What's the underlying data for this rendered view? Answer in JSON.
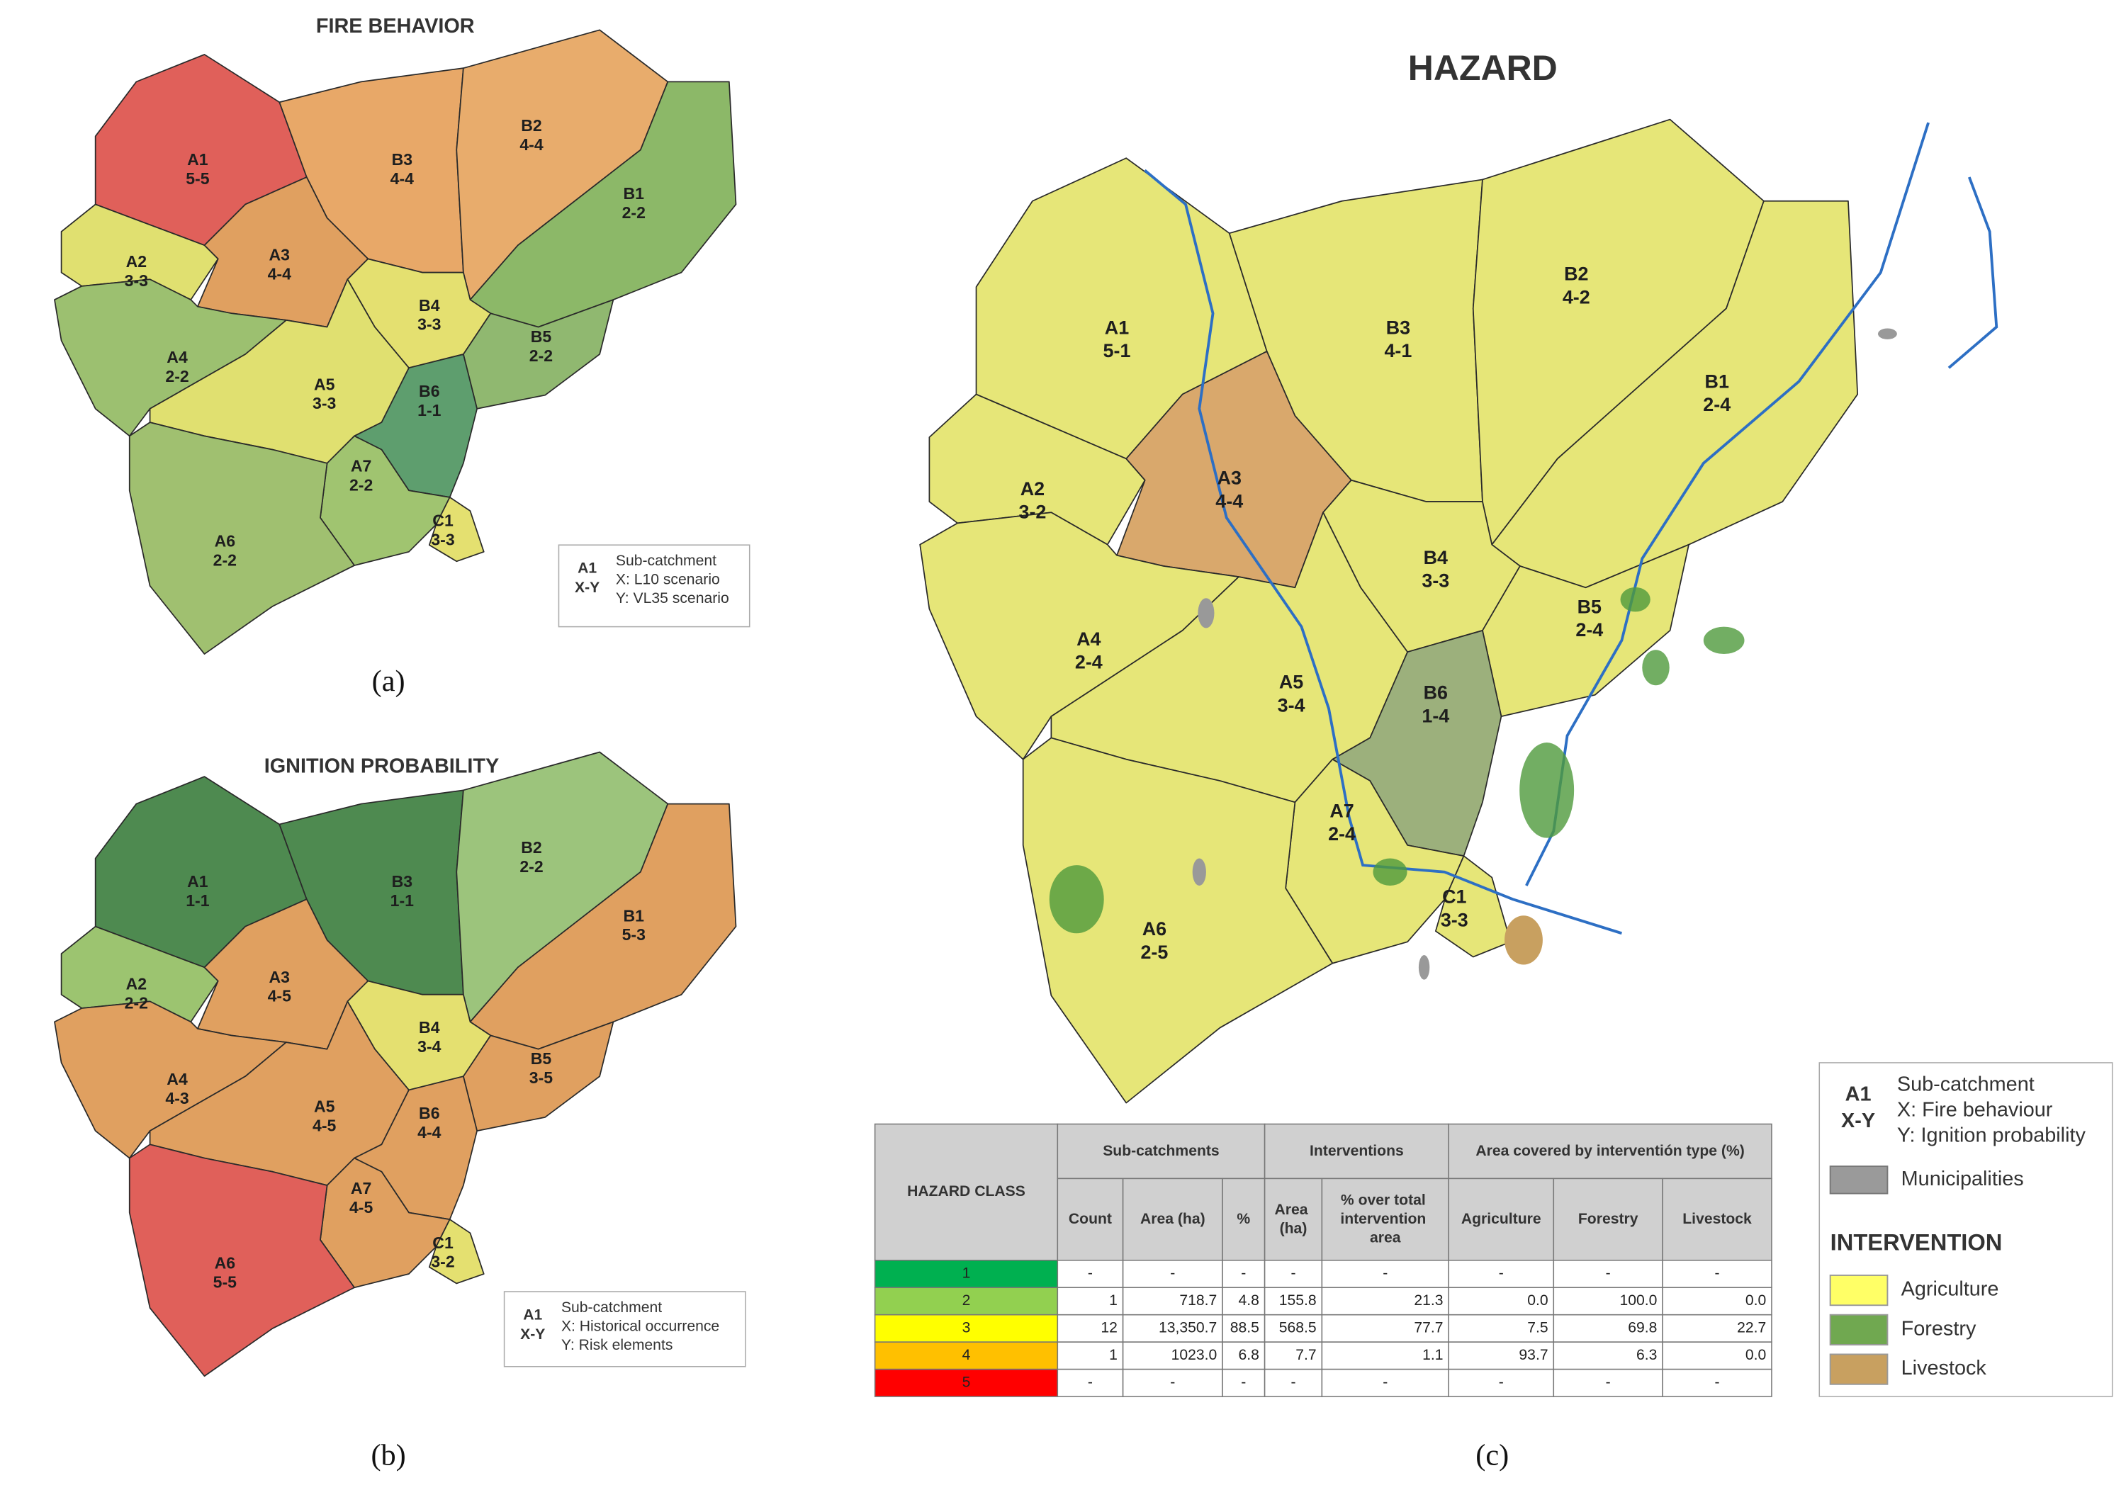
{
  "panels": [
    {
      "title": "FIRE BEHAVIOR",
      "regions": [
        {
          "id": "A1",
          "code": "5-5"
        },
        {
          "id": "B3",
          "code": "4-4"
        },
        {
          "id": "B2",
          "code": "4-4"
        },
        {
          "id": "B1",
          "code": "2-2"
        },
        {
          "id": "A2",
          "code": "3-3"
        },
        {
          "id": "A3",
          "code": "4-4"
        },
        {
          "id": "B4",
          "code": "3-3"
        },
        {
          "id": "B5",
          "code": "2-2"
        },
        {
          "id": "A4",
          "code": "2-2"
        },
        {
          "id": "A5",
          "code": "3-3"
        },
        {
          "id": "B6",
          "code": "1-1"
        },
        {
          "id": "A7",
          "code": "2-2"
        },
        {
          "id": "C1",
          "code": "3-3"
        },
        {
          "id": "A6",
          "code": "2-2"
        }
      ],
      "legend": {
        "example_id": "A1",
        "example_code": "X-Y",
        "lines": [
          "Sub-catchment",
          "X: L10 scenario",
          "Y: VL35 scenario"
        ]
      },
      "caption": "(a)"
    },
    {
      "title": "IGNITION PROBABILITY",
      "regions": [
        {
          "id": "A1",
          "code": "1-1"
        },
        {
          "id": "B3",
          "code": "1-1"
        },
        {
          "id": "B2",
          "code": "2-2"
        },
        {
          "id": "B1",
          "code": "5-3"
        },
        {
          "id": "A2",
          "code": "2-2"
        },
        {
          "id": "A3",
          "code": "4-5"
        },
        {
          "id": "B4",
          "code": "3-4"
        },
        {
          "id": "B5",
          "code": "3-5"
        },
        {
          "id": "A4",
          "code": "4-3"
        },
        {
          "id": "A5",
          "code": "4-5"
        },
        {
          "id": "B6",
          "code": "4-4"
        },
        {
          "id": "A7",
          "code": "4-5"
        },
        {
          "id": "C1",
          "code": "3-2"
        },
        {
          "id": "A6",
          "code": "5-5"
        }
      ],
      "legend": {
        "example_id": "A1",
        "example_code": "X-Y",
        "lines": [
          "Sub-catchment",
          "X: Historical occurrence",
          "Y: Risk elements"
        ]
      },
      "caption": "(b)"
    },
    {
      "title": "HAZARD",
      "regions": [
        {
          "id": "A1",
          "code": "5-1"
        },
        {
          "id": "B3",
          "code": "4-1"
        },
        {
          "id": "B2",
          "code": "4-2"
        },
        {
          "id": "B1",
          "code": "2-4"
        },
        {
          "id": "A2",
          "code": "3-2"
        },
        {
          "id": "A3",
          "code": "4-4"
        },
        {
          "id": "B4",
          "code": "3-3"
        },
        {
          "id": "B5",
          "code": "2-4"
        },
        {
          "id": "A4",
          "code": "2-4"
        },
        {
          "id": "A5",
          "code": "3-4"
        },
        {
          "id": "B6",
          "code": "1-4"
        },
        {
          "id": "A7",
          "code": "2-4"
        },
        {
          "id": "C1",
          "code": "3-3"
        },
        {
          "id": "A6",
          "code": "2-5"
        }
      ],
      "legend": {
        "example_id": "A1",
        "example_code": "X-Y",
        "lines": [
          "Sub-catchment",
          "X: Fire behaviour",
          "Y: Ignition probability"
        ],
        "items": [
          "Municipalities"
        ],
        "intervention_title": "INTERVENTION",
        "intervention_items": [
          "Agriculture",
          "Forestry",
          "Livestock"
        ]
      },
      "caption": "(c)"
    }
  ],
  "table": {
    "corner": "HAZARD CLASS",
    "groups": [
      "Sub-catchments",
      "Interventions",
      "Area covered by interventión type (%)"
    ],
    "columns": [
      "Count",
      "Area (ha)",
      "%",
      "Area (ha)",
      "% over total intervention area",
      "Agriculture",
      "Forestry",
      "Livestock"
    ],
    "rows": [
      [
        "1",
        "-",
        "-",
        "-",
        "-",
        "-",
        "-",
        "-",
        "-"
      ],
      [
        "2",
        "1",
        "718.7",
        "4.8",
        "155.8",
        "21.3",
        "0.0",
        "100.0",
        "0.0"
      ],
      [
        "3",
        "12",
        "13,350.7",
        "88.5",
        "568.5",
        "77.7",
        "7.5",
        "69.8",
        "22.7"
      ],
      [
        "4",
        "1",
        "1023.0",
        "6.8",
        "7.7",
        "1.1",
        "93.7",
        "6.3",
        "0.0"
      ],
      [
        "5",
        "-",
        "-",
        "-",
        "-",
        "-",
        "-",
        "-",
        "-"
      ]
    ]
  }
}
